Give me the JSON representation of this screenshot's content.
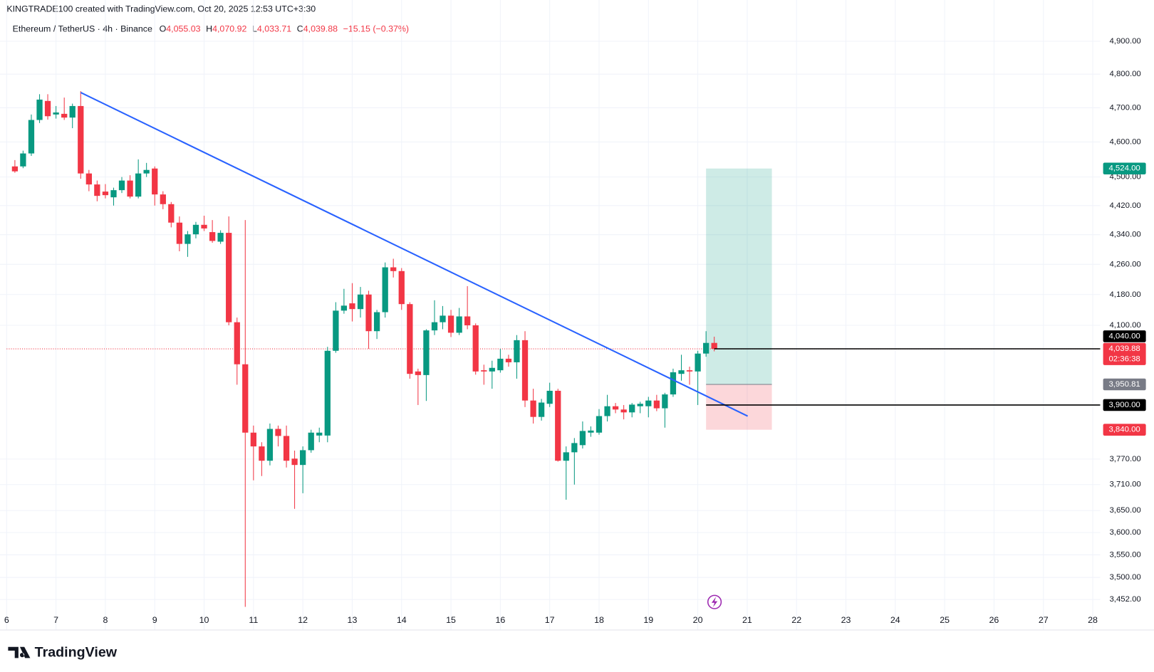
{
  "header": {
    "attribution": "KINGTRADE100 created with TradingView.com, Oct 20, 2025 12:53 UTC+3:30",
    "symbol": "Ethereum / TetherUS · 4h · Binance",
    "ohlc": [
      {
        "key": "O",
        "value": "4,055.03"
      },
      {
        "key": "H",
        "value": "4,070.92"
      },
      {
        "key": "L",
        "value": "4,033.71"
      },
      {
        "key": "C",
        "value": "4,039.88"
      }
    ],
    "change": "−15.15 (−0.37%)"
  },
  "branding": "TradingView",
  "chart_data": {
    "type": "candlestick",
    "up_color": "#089981",
    "down_color": "#f23645",
    "log_scale": true,
    "grid": true,
    "xlim": [
      6,
      28.15
    ],
    "xticks": [
      6,
      7,
      8,
      9,
      10,
      11,
      12,
      13,
      14,
      15,
      16,
      17,
      18,
      19,
      20,
      21,
      22,
      23,
      24,
      25,
      26,
      27,
      28
    ],
    "ylim": [
      3429,
      4964
    ],
    "yticks": [
      {
        "value": 4900,
        "label": "4,900.00"
      },
      {
        "value": 4800,
        "label": "4,800.00"
      },
      {
        "value": 4700,
        "label": "4,700.00"
      },
      {
        "value": 4600,
        "label": "4,600.00"
      },
      {
        "value": 4500,
        "label": "4,500.00"
      },
      {
        "value": 4420,
        "label": "4,420.00"
      },
      {
        "value": 4340,
        "label": "4,340.00"
      },
      {
        "value": 4260,
        "label": "4,260.00"
      },
      {
        "value": 4180,
        "label": "4,180.00"
      },
      {
        "value": 4100,
        "label": "4,100.00"
      },
      {
        "value": 3770,
        "label": "3,770.00"
      },
      {
        "value": 3710,
        "label": "3,710.00"
      },
      {
        "value": 3650,
        "label": "3,650.00"
      },
      {
        "value": 3600,
        "label": "3,600.00"
      },
      {
        "value": 3550,
        "label": "3,550.00"
      },
      {
        "value": 3500,
        "label": "3,500.00"
      },
      {
        "value": 3452,
        "label": "3,452.00"
      }
    ],
    "x": [
      6.167,
      6.333,
      6.5,
      6.667,
      6.833,
      7,
      7.167,
      7.333,
      7.5,
      7.667,
      7.833,
      8,
      8.167,
      8.333,
      8.5,
      8.667,
      8.833,
      9,
      9.167,
      9.333,
      9.5,
      9.667,
      9.833,
      10,
      10.167,
      10.333,
      10.5,
      10.667,
      10.833,
      11,
      11.167,
      11.333,
      11.5,
      11.667,
      11.833,
      12,
      12.167,
      12.333,
      12.5,
      12.667,
      12.833,
      13,
      13.167,
      13.333,
      13.5,
      13.667,
      13.833,
      14,
      14.167,
      14.333,
      14.5,
      14.667,
      14.833,
      15,
      15.167,
      15.333,
      15.5,
      15.667,
      15.833,
      16,
      16.167,
      16.333,
      16.5,
      16.667,
      16.833,
      17,
      17.167,
      17.333,
      17.5,
      17.667,
      17.833,
      18,
      18.167,
      18.333,
      18.5,
      18.667,
      18.833,
      19,
      19.167,
      19.333,
      19.5,
      19.667,
      19.833,
      20,
      20.167,
      20.333
    ],
    "open": [
      4530,
      4530,
      4567,
      4664,
      4720,
      4680,
      4682,
      4671,
      4705,
      4510,
      4479,
      4459,
      4443,
      4463,
      4490,
      4445,
      4510,
      4524,
      4451,
      4424,
      4373,
      4315,
      4341,
      4367,
      4347,
      4321,
      4345,
      4108,
      4001,
      3833,
      3800,
      3766,
      3842,
      3825,
      3771,
      3756,
      3791,
      3826,
      3826,
      4035,
      4138,
      4157,
      4142,
      4180,
      4085,
      4134,
      4252,
      4242,
      4155,
      3983,
      3974,
      4087,
      4108,
      4125,
      4081,
      4123,
      4100,
      3986,
      3983,
      3986,
      4015,
      4006,
      4062,
      3911,
      3871,
      3903,
      3935,
      3766,
      3786,
      3803,
      3833,
      3833,
      3873,
      3897,
      3889,
      3882,
      3897,
      3897,
      3911,
      3892,
      3926,
      3977,
      3986,
      3983,
      4028,
      4055.03
    ],
    "high": [
      4548,
      4575,
      4680,
      4740,
      4740,
      4705,
      4730,
      4712,
      4749,
      4520,
      4490,
      4480,
      4470,
      4500,
      4505,
      4550,
      4540,
      4530,
      4460,
      4430,
      4390,
      4350,
      4375,
      4392,
      4380,
      4352,
      4390,
      4120,
      4380,
      3850,
      3810,
      3855,
      3850,
      3850,
      3790,
      3800,
      3840,
      3845,
      4045,
      4160,
      4195,
      4210,
      4200,
      4190,
      4140,
      4265,
      4275,
      4250,
      4160,
      3990,
      4090,
      4165,
      4150,
      4140,
      4145,
      4202,
      4105,
      4000,
      4010,
      4040,
      4025,
      4075,
      4085,
      3940,
      3915,
      3955,
      3940,
      3800,
      3820,
      3860,
      3848,
      3890,
      3925,
      3905,
      3900,
      3905,
      3908,
      3920,
      3925,
      3930,
      3990,
      4025,
      3995,
      4035,
      4085,
      4070.92
    ],
    "low": [
      4512,
      4525,
      4560,
      4655,
      4665,
      4668,
      4664,
      4640,
      4495,
      4460,
      4432,
      4440,
      4420,
      4455,
      4440,
      4440,
      4500,
      4420,
      4410,
      4360,
      4295,
      4280,
      4330,
      4350,
      4318,
      4315,
      4100,
      3950,
      3436,
      3720,
      3730,
      3755,
      3800,
      3750,
      3654,
      3690,
      3785,
      3810,
      3810,
      4030,
      4130,
      4110,
      4120,
      4040,
      4065,
      4120,
      4225,
      4140,
      3965,
      3900,
      3910,
      4075,
      4090,
      4070,
      4075,
      4090,
      3975,
      3950,
      3940,
      3980,
      3995,
      3965,
      3895,
      3855,
      3862,
      3895,
      3764,
      3675,
      3710,
      3795,
      3823,
      3828,
      3860,
      3880,
      3865,
      3870,
      3880,
      3870,
      3885,
      3845,
      3920,
      3960,
      3950,
      3900,
      4020,
      4033.71
    ],
    "close": [
      4516,
      4567,
      4664,
      4724,
      4675,
      4686,
      4671,
      4705,
      4510,
      4479,
      4447,
      4449,
      4463,
      4490,
      4445,
      4510,
      4520,
      4451,
      4424,
      4373,
      4315,
      4341,
      4367,
      4357,
      4323,
      4345,
      4108,
      4001,
      3833,
      3800,
      3766,
      3842,
      3825,
      3766,
      3756,
      3791,
      3833,
      3833,
      4035,
      4138,
      4151,
      4142,
      4180,
      4085,
      4134,
      4252,
      4242,
      4155,
      3977,
      3974,
      4087,
      4108,
      4125,
      4081,
      4123,
      4100,
      3983,
      3983,
      3992,
      4015,
      4006,
      4062,
      3911,
      3871,
      3906,
      3935,
      3766,
      3786,
      3808,
      3837,
      3838,
      3873,
      3897,
      3889,
      3882,
      3901,
      3903,
      3911,
      3892,
      3926,
      3981,
      3986,
      3983,
      4028,
      4055,
      4039.88
    ],
    "trendline": {
      "x": [
        7.5,
        21.01
      ],
      "y": [
        4745,
        3873
      ],
      "color": "#2962ff"
    },
    "position": {
      "x": [
        20.167,
        21.5
      ],
      "entry": 3950.81,
      "target": 4524,
      "stop": 3840,
      "entry_label": "3,950.81",
      "target_label": "4,524.00",
      "stop_label": "3,840.00"
    },
    "horizontal_lines": [
      {
        "value": 4040,
        "label": "4,040.00",
        "x_start": 20.333
      },
      {
        "value": 3900,
        "label": "3,900.00",
        "x_start": 20.167
      }
    ],
    "last_price": {
      "value": 4039.88,
      "label": "4,039.88",
      "countdown": "02:36:38"
    }
  }
}
